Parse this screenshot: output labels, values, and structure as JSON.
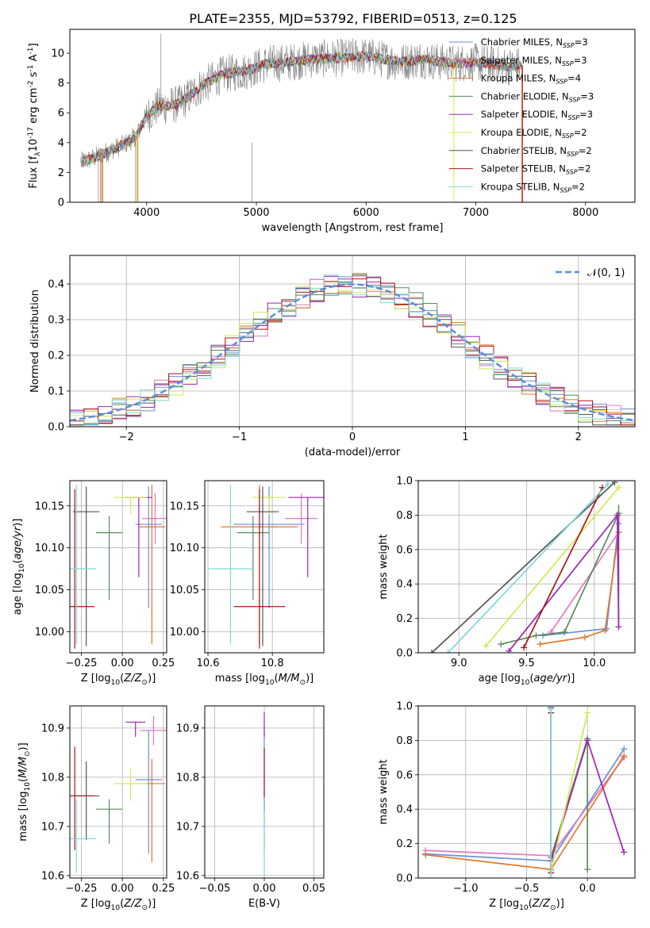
{
  "figure": {
    "title": "PLATE=2355, MJD=53792, FIBERID=0513, z=0.125"
  },
  "colors": {
    "Chabrier MILES": "#6b8fd6",
    "Salpeter MILES": "#e377c2",
    "Kroupa MILES": "#e0772b",
    "Chabrier ELODIE": "#5a8a5a",
    "Salpeter ELODIE": "#9c27b0",
    "Kroupa ELODIE": "#d4e84f",
    "Chabrier STELIB": "#555555",
    "Salpeter STELIB": "#a8141b",
    "Kroupa STELIB": "#7fd8dc"
  },
  "chart_data": [
    {
      "id": "spectrum",
      "type": "line",
      "xlabel": "wavelength [Angstrom, rest frame]",
      "ylabel": "Flux [f$_\\lambda$10$^{-17}$ erg cm$^{-2}$ s$^{-1}$ A$^{-1}$]",
      "xlim": [
        3300,
        8450
      ],
      "ylim": [
        0,
        11.6
      ],
      "xticks": [
        4000,
        5000,
        6000,
        7000,
        8000
      ],
      "yticks": [
        0,
        2,
        4,
        6,
        8,
        10
      ],
      "grid": false,
      "legend_position": "right",
      "legend": [
        {
          "label": "Chabrier MILES, N",
          "sub": "SSP",
          "eq": "=3",
          "model": "Chabrier MILES"
        },
        {
          "label": "Salpeter MILES, N",
          "sub": "SSP",
          "eq": "=3",
          "model": "Salpeter MILES"
        },
        {
          "label": "Kroupa MILES, N",
          "sub": "SSP",
          "eq": "=4",
          "model": "Kroupa MILES"
        },
        {
          "label": "Chabrier ELODIE, N",
          "sub": "SSP",
          "eq": "=3",
          "model": "Chabrier ELODIE"
        },
        {
          "label": "Salpeter ELODIE, N",
          "sub": "SSP",
          "eq": "=3",
          "model": "Salpeter ELODIE"
        },
        {
          "label": "Kroupa ELODIE, N",
          "sub": "SSP",
          "eq": "=2",
          "model": "Kroupa ELODIE"
        },
        {
          "label": "Chabrier STELIB, N",
          "sub": "SSP",
          "eq": "=2",
          "model": "Chabrier STELIB"
        },
        {
          "label": "Salpeter STELIB, N",
          "sub": "SSP",
          "eq": "=2",
          "model": "Salpeter STELIB"
        },
        {
          "label": "Kroupa STELIB, N",
          "sub": "SSP",
          "eq": "=2",
          "model": "Kroupa STELIB"
        }
      ],
      "data_envelope": {
        "x": [
          3400,
          3500,
          3650,
          3800,
          3900,
          4000,
          4100,
          4200,
          4300,
          4500,
          4700,
          4900,
          5100,
          5300,
          5500,
          5800,
          6000,
          6300,
          6500,
          6800,
          7000,
          7300,
          7400
        ],
        "y": [
          2.7,
          2.9,
          3.4,
          3.9,
          4.4,
          5.8,
          6.4,
          6.5,
          6.6,
          7.8,
          8.6,
          8.8,
          9.3,
          9.4,
          9.6,
          9.7,
          9.8,
          9.4,
          9.6,
          9.3,
          9.4,
          9.1,
          9.2
        ]
      }
    },
    {
      "id": "residuals",
      "type": "histogram",
      "xlabel": "(data-model)/error",
      "ylabel": "Normed distribution",
      "xlim": [
        -2.5,
        2.5
      ],
      "ylim": [
        0,
        0.48
      ],
      "xticks": [
        -2,
        -1,
        0,
        1,
        2
      ],
      "yticks": [
        0.0,
        0.1,
        0.2,
        0.3,
        0.4
      ],
      "grid": true,
      "legend_label": "$\\mathcal{N}(0, 1)$",
      "legend_position": "top-right",
      "normal_curve": {
        "mean": 0,
        "sigma": 1,
        "color": "#5b8fd9"
      }
    },
    {
      "id": "age_vs_Z",
      "type": "errorbar",
      "xlabel": "Z [log$_{10}$($Z/Z_\\odot$)]",
      "ylabel": "age  [log$_{10}$($age/yr$)]",
      "xlim": [
        -0.32,
        0.27
      ],
      "ylim": [
        9.975,
        10.18
      ],
      "xticks": [
        -0.25,
        0.0,
        0.25
      ],
      "yticks": [
        10.0,
        10.05,
        10.1,
        10.15
      ],
      "grid": true,
      "points": [
        {
          "model": "Chabrier MILES",
          "x": 0.16,
          "y": 10.128,
          "xerr": 0.08,
          "yerr": [
            0.1,
            0.045
          ]
        },
        {
          "model": "Salpeter MILES",
          "x": 0.2,
          "y": 10.135,
          "xerr": 0.08,
          "yerr": [
            0.03,
            0.03
          ]
        },
        {
          "model": "Kroupa MILES",
          "x": 0.18,
          "y": 10.125,
          "xerr": 0.08,
          "yerr": [
            0.14,
            0.05
          ]
        },
        {
          "model": "Chabrier ELODIE",
          "x": -0.08,
          "y": 10.118,
          "xerr": 0.08,
          "yerr": [
            0.08,
            0.02
          ]
        },
        {
          "model": "Salpeter ELODIE",
          "x": 0.1,
          "y": 10.16,
          "xerr": 0.08,
          "yerr": [
            0.095,
            0.0
          ]
        },
        {
          "model": "Kroupa ELODIE",
          "x": 0.05,
          "y": 10.16,
          "xerr": 0.1,
          "yerr": [
            0.02,
            0.0
          ]
        },
        {
          "model": "Chabrier STELIB",
          "x": -0.22,
          "y": 10.143,
          "xerr": 0.08,
          "yerr": [
            0.16,
            0.03
          ]
        },
        {
          "model": "Salpeter STELIB",
          "x": -0.29,
          "y": 10.03,
          "xerr": 0.12,
          "yerr": [
            0.05,
            0.14
          ]
        },
        {
          "model": "Kroupa STELIB",
          "x": -0.28,
          "y": 10.075,
          "xerr": 0.12,
          "yerr": [
            0.09,
            0.1
          ]
        }
      ]
    },
    {
      "id": "age_vs_mass",
      "type": "errorbar",
      "xlabel": "mass [log$_{10}$($M/M_\\odot$)]",
      "ylabel": "",
      "xlim": [
        10.59,
        10.96
      ],
      "ylim": [
        9.975,
        10.18
      ],
      "xticks": [
        10.6,
        10.8
      ],
      "yticks": [
        10.0,
        10.05,
        10.1,
        10.15
      ],
      "grid": true,
      "points": [
        {
          "model": "Chabrier MILES",
          "x": 10.79,
          "y": 10.128,
          "xerr": 0.11,
          "yerr": [
            0.1,
            0.045
          ]
        },
        {
          "model": "Salpeter MILES",
          "x": 10.89,
          "y": 10.135,
          "xerr": 0.05,
          "yerr": [
            0.03,
            0.03
          ]
        },
        {
          "model": "Kroupa MILES",
          "x": 10.76,
          "y": 10.125,
          "xerr": 0.12,
          "yerr": [
            0.14,
            0.05
          ]
        },
        {
          "model": "Chabrier ELODIE",
          "x": 10.74,
          "y": 10.118,
          "xerr": 0.05,
          "yerr": [
            0.08,
            0.02
          ]
        },
        {
          "model": "Salpeter ELODIE",
          "x": 10.91,
          "y": 10.16,
          "xerr": 0.06,
          "yerr": [
            0.095,
            0.0
          ]
        },
        {
          "model": "Kroupa ELODIE",
          "x": 10.79,
          "y": 10.16,
          "xerr": 0.05,
          "yerr": [
            0.02,
            0.0
          ]
        },
        {
          "model": "Chabrier STELIB",
          "x": 10.77,
          "y": 10.143,
          "xerr": 0.05,
          "yerr": [
            0.16,
            0.03
          ]
        },
        {
          "model": "Salpeter STELIB",
          "x": 10.76,
          "y": 10.03,
          "xerr": 0.08,
          "yerr": [
            0.05,
            0.14
          ]
        },
        {
          "model": "Kroupa STELIB",
          "x": 10.67,
          "y": 10.075,
          "xerr": 0.07,
          "yerr": [
            0.09,
            0.1
          ]
        }
      ]
    },
    {
      "id": "weight_vs_age",
      "type": "line",
      "xlabel": "age  [log$_{10}$($age/yr$)]",
      "ylabel": "mass weight",
      "xlim": [
        8.7,
        10.3
      ],
      "ylim": [
        0,
        1.0
      ],
      "xticks": [
        9.0,
        9.5,
        10.0
      ],
      "yticks": [
        0.0,
        0.2,
        0.4,
        0.6,
        0.8,
        1.0
      ],
      "grid": true,
      "series": [
        {
          "model": "Chabrier MILES",
          "points": [
            [
              9.62,
              0.1
            ],
            [
              10.09,
              0.14
            ],
            [
              10.18,
              0.75
            ]
          ],
          "verr": [
            10.18,
            0.68,
            0.82
          ]
        },
        {
          "model": "Salpeter MILES",
          "points": [
            [
              9.68,
              0.12
            ],
            [
              10.18,
              0.7
            ]
          ]
        },
        {
          "model": "Kroupa MILES",
          "points": [
            [
              9.6,
              0.05
            ],
            [
              9.93,
              0.09
            ],
            [
              10.08,
              0.13
            ],
            [
              10.18,
              0.7
            ]
          ],
          "verr": [
            10.18,
            0.62,
            0.76
          ]
        },
        {
          "model": "Chabrier ELODIE",
          "points": [
            [
              9.31,
              0.05
            ],
            [
              9.57,
              0.1
            ],
            [
              9.78,
              0.12
            ],
            [
              10.18,
              0.81
            ]
          ],
          "verr": [
            10.18,
            0.75,
            0.86
          ]
        },
        {
          "model": "Salpeter ELODIE",
          "points": [
            [
              9.37,
              0.01
            ],
            [
              10.17,
              0.8
            ],
            [
              10.18,
              0.15
            ]
          ],
          "verr": [
            10.18,
            0.14,
            0.8
          ]
        },
        {
          "model": "Kroupa ELODIE",
          "points": [
            [
              9.2,
              0.04
            ],
            [
              10.18,
              0.96
            ]
          ]
        },
        {
          "model": "Chabrier STELIB",
          "points": [
            [
              8.8,
              0.0
            ],
            [
              10.15,
              0.99
            ]
          ]
        },
        {
          "model": "Salpeter STELIB",
          "points": [
            [
              9.48,
              0.03
            ],
            [
              10.06,
              0.96
            ]
          ]
        },
        {
          "model": "Kroupa STELIB",
          "points": [
            [
              8.92,
              0.0
            ],
            [
              10.1,
              0.98
            ]
          ]
        }
      ]
    },
    {
      "id": "mass_vs_Z",
      "type": "errorbar",
      "xlabel": "Z [log$_{10}$($Z/Z_\\odot$)]",
      "ylabel": "mass [log$_{10}$($M/M_\\odot$)]",
      "xlim": [
        -0.32,
        0.27
      ],
      "ylim": [
        10.595,
        10.945
      ],
      "xticks": [
        -0.25,
        0.0,
        0.25
      ],
      "yticks": [
        10.6,
        10.7,
        10.8,
        10.9
      ],
      "grid": true,
      "points": [
        {
          "model": "Chabrier MILES",
          "x": 0.16,
          "y": 10.795,
          "xerr": 0.08,
          "yerr": [
            0.15,
            0.1
          ]
        },
        {
          "model": "Salpeter MILES",
          "x": 0.19,
          "y": 10.895,
          "xerr": 0.08,
          "yerr": [
            0.03,
            0.03
          ]
        },
        {
          "model": "Kroupa MILES",
          "x": 0.18,
          "y": 10.787,
          "xerr": 0.08,
          "yerr": [
            0.16,
            0.05
          ]
        },
        {
          "model": "Chabrier ELODIE",
          "x": -0.08,
          "y": 10.735,
          "xerr": 0.08,
          "yerr": [
            0.07,
            0.02
          ]
        },
        {
          "model": "Salpeter ELODIE",
          "x": 0.08,
          "y": 10.912,
          "xerr": 0.06,
          "yerr": [
            0.03,
            0.0
          ]
        },
        {
          "model": "Kroupa ELODIE",
          "x": 0.05,
          "y": 10.787,
          "xerr": 0.1,
          "yerr": [
            0.035,
            0.03
          ]
        },
        {
          "model": "Chabrier STELIB",
          "x": -0.22,
          "y": 10.762,
          "xerr": 0.08,
          "yerr": [
            0.09,
            0.07
          ]
        },
        {
          "model": "Salpeter STELIB",
          "x": -0.29,
          "y": 10.762,
          "xerr": 0.12,
          "yerr": [
            0.11,
            0.1
          ]
        },
        {
          "model": "Kroupa STELIB",
          "x": -0.28,
          "y": 10.675,
          "xerr": 0.12,
          "yerr": [
            0.07,
            0.08
          ]
        }
      ]
    },
    {
      "id": "mass_vs_EBV",
      "type": "errorbar",
      "xlabel": "E(B-V)",
      "ylabel": "",
      "xlim": [
        -0.06,
        0.06
      ],
      "ylim": [
        10.595,
        10.945
      ],
      "xticks": [
        -0.05,
        0.0,
        0.05
      ],
      "yticks": [
        10.6,
        10.7,
        10.8,
        10.9
      ],
      "grid": true,
      "points": [
        {
          "model": "Chabrier MILES",
          "x": 0.0,
          "y": 10.795,
          "xerr": 0.0,
          "yerr": [
            0.15,
            0.1
          ]
        },
        {
          "model": "Salpeter ELODIE",
          "x": 0.0,
          "y": 10.912,
          "xerr": 0.0,
          "yerr": [
            0.03,
            0.02
          ]
        },
        {
          "model": "Salpeter STELIB",
          "x": 0.0,
          "y": 10.8,
          "xerr": 0.0,
          "yerr": [
            0.04,
            0.06
          ]
        },
        {
          "model": "Kroupa STELIB",
          "x": 0.0,
          "y": 10.68,
          "xerr": 0.0,
          "yerr": [
            0.08,
            0.05
          ]
        }
      ]
    },
    {
      "id": "weight_vs_Z",
      "type": "line",
      "xlabel": "Z [log$_{10}$($Z/Z_\\odot$)]",
      "ylabel": "mass weight",
      "xlim": [
        -1.39,
        0.39
      ],
      "ylim": [
        0,
        1.0
      ],
      "xticks": [
        -1.0,
        -0.5,
        0.0
      ],
      "yticks": [
        0.0,
        0.2,
        0.4,
        0.6,
        0.8,
        1.0
      ],
      "grid": true,
      "series": [
        {
          "model": "Chabrier MILES",
          "points": [
            [
              -1.33,
              0.14
            ],
            [
              -0.3,
              0.1
            ],
            [
              0.3,
              0.75
            ]
          ]
        },
        {
          "model": "Salpeter MILES",
          "points": [
            [
              -1.33,
              0.16
            ],
            [
              -0.3,
              0.13
            ],
            [
              0.3,
              0.7
            ]
          ]
        },
        {
          "model": "Kroupa MILES",
          "points": [
            [
              -1.33,
              0.135
            ],
            [
              -0.3,
              0.05
            ],
            [
              0.3,
              0.71
            ]
          ]
        },
        {
          "model": "Chabrier ELODIE",
          "points": [
            [
              -0.3,
              0.12
            ],
            [
              0.0,
              0.81
            ],
            [
              0.0,
              0.05
            ]
          ]
        },
        {
          "model": "Salpeter ELODIE",
          "points": [
            [
              -0.3,
              0.1
            ],
            [
              0.0,
              0.8
            ],
            [
              0.3,
              0.15
            ]
          ]
        },
        {
          "model": "Kroupa ELODIE",
          "points": [
            [
              -0.3,
              0.04
            ],
            [
              0.0,
              0.96
            ]
          ]
        },
        {
          "model": "Chabrier STELIB",
          "points": [
            [
              -0.3,
              0.0
            ],
            [
              -0.3,
              0.99
            ]
          ]
        },
        {
          "model": "Salpeter STELIB",
          "points": [
            [
              -0.3,
              0.03
            ],
            [
              -0.3,
              0.96
            ]
          ]
        },
        {
          "model": "Kroupa STELIB",
          "points": [
            [
              -0.3,
              0.0
            ],
            [
              -0.3,
              0.98
            ]
          ]
        }
      ]
    }
  ]
}
